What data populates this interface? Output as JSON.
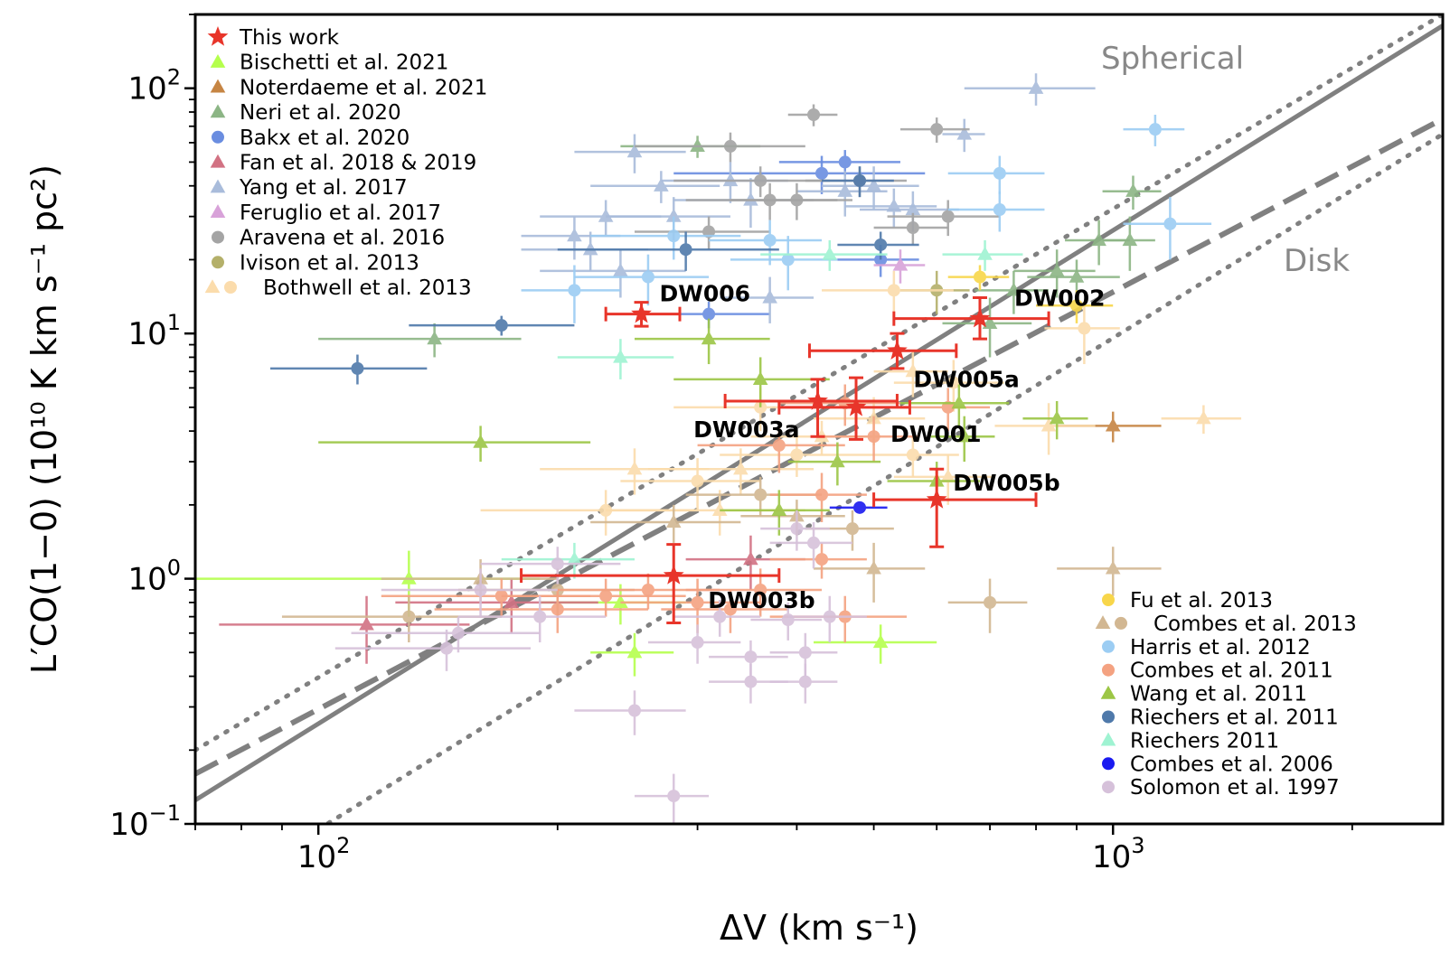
{
  "chart_data": {
    "type": "scatter",
    "xlabel": "ΔV (km s⁻¹)",
    "ylabel": "L′CO(1−0) (10¹⁰ K km s⁻¹ pc²)",
    "xscale": "log",
    "yscale": "log",
    "xlim": [
      70,
      2600
    ],
    "ylim": [
      0.1,
      200
    ],
    "x_tick_labels": [
      {
        "value": 100,
        "base": "10",
        "exp": "2"
      },
      {
        "value": 1000,
        "base": "10",
        "exp": "3"
      }
    ],
    "y_tick_labels": [
      {
        "value": 0.1,
        "base": "10",
        "exp": "−1"
      },
      {
        "value": 1,
        "base": "10",
        "exp": "0"
      },
      {
        "value": 10,
        "base": "10",
        "exp": "1"
      },
      {
        "value": 100,
        "base": "10",
        "exp": "2"
      }
    ],
    "model_labels": {
      "spherical": "Spherical",
      "disk": "Disk"
    },
    "lines": [
      {
        "style": "solid",
        "points": [
          [
            70,
            0.125
          ],
          [
            2600,
            180
          ]
        ]
      },
      {
        "style": "dashed",
        "points": [
          [
            70,
            0.16
          ],
          [
            2600,
            75
          ]
        ]
      },
      {
        "style": "dotted",
        "points": [
          [
            70,
            0.2
          ],
          [
            2600,
            200
          ]
        ]
      },
      {
        "style": "dotted",
        "points": [
          [
            100,
            0.095
          ],
          [
            2600,
            65
          ]
        ]
      }
    ],
    "legend_top": [
      {
        "label": "This work",
        "color": "#e8352a",
        "marker": "star"
      },
      {
        "label": "Bischetti et al. 2021",
        "color": "#b5ff4d",
        "marker": "triangle"
      },
      {
        "label": "Noterdaeme et al. 2021",
        "color": "#c68543",
        "marker": "triangle"
      },
      {
        "label": "Neri et al. 2020",
        "color": "#8cb585",
        "marker": "triangle"
      },
      {
        "label": "Bakx et al. 2020",
        "color": "#6a8de0",
        "marker": "circle"
      },
      {
        "label": "Fan et al. 2018 & 2019",
        "color": "#d27283",
        "marker": "triangle"
      },
      {
        "label": "Yang et al. 2017",
        "color": "#a9bcdb",
        "marker": "triangle"
      },
      {
        "label": "Feruglio et al. 2017",
        "color": "#d8a2d9",
        "marker": "triangle"
      },
      {
        "label": "Aravena et al. 2016",
        "color": "#a4a4a4",
        "marker": "circle"
      },
      {
        "label": "Ivison et al. 2013",
        "color": "#b4b06a",
        "marker": "circle"
      },
      {
        "label": "Bothwell et al. 2013",
        "color": "#fbdcac",
        "marker": "triangle+circle"
      }
    ],
    "legend_bottom": [
      {
        "label": "Fu et al. 2013",
        "color": "#f8d64a",
        "marker": "circle"
      },
      {
        "label": "Combes et al. 2013",
        "color": "#d2b792",
        "marker": "triangle+circle"
      },
      {
        "label": "Harris et al. 2012",
        "color": "#9ccdf3",
        "marker": "circle"
      },
      {
        "label": "Combes et al. 2011",
        "color": "#f4a281",
        "marker": "circle"
      },
      {
        "label": "Wang et al. 2011",
        "color": "#9cc645",
        "marker": "triangle"
      },
      {
        "label": "Riechers et al. 2011",
        "color": "#4f79aa",
        "marker": "circle"
      },
      {
        "label": "Riechers 2011",
        "color": "#9ff3d2",
        "marker": "triangle"
      },
      {
        "label": "Combes et al. 2006",
        "color": "#1a1af0",
        "marker": "circle"
      },
      {
        "label": "Solomon et al. 1997",
        "color": "#d6c1da",
        "marker": "circle"
      }
    ],
    "this_work": [
      {
        "name": "DW006",
        "x": 255,
        "y": 12,
        "xerr": [
          25,
          30
        ],
        "yerr": [
          1.3,
          1.4
        ]
      },
      {
        "name": "DW002",
        "x": 680,
        "y": 11.5,
        "xerr": [
          150,
          150
        ],
        "yerr": [
          2.0,
          2.5
        ]
      },
      {
        "name": "DW005a",
        "x": 535,
        "y": 8.5,
        "xerr": [
          120,
          100
        ],
        "yerr": [
          1.3,
          1.5
        ]
      },
      {
        "name": "DW003a",
        "x": 425,
        "y": 5.3,
        "xerr": [
          100,
          110
        ],
        "yerr": [
          1.5,
          1.2
        ]
      },
      {
        "name": "DW001",
        "x": 475,
        "y": 5.0,
        "xerr": [
          95,
          80
        ],
        "yerr": [
          1.3,
          1.6
        ]
      },
      {
        "name": "DW005b",
        "x": 600,
        "y": 2.1,
        "xerr": [
          100,
          200
        ],
        "yerr": [
          0.75,
          0.7
        ]
      },
      {
        "name": "DW003b",
        "x": 280,
        "y": 1.03,
        "xerr": [
          100,
          100
        ],
        "yerr": [
          0.37,
          0.35
        ]
      }
    ],
    "literature": [
      {
        "color": "#b5ff4d",
        "marker": "triangle",
        "points": [
          [
            130,
            1.0,
            60,
            0.3
          ],
          [
            250,
            0.5,
            30,
            0.1
          ],
          [
            510,
            0.55,
            90,
            0.1
          ],
          [
            240,
            0.8,
            50,
            0.15
          ]
        ]
      },
      {
        "color": "#c68543",
        "marker": "triangle",
        "points": [
          [
            1000,
            4.2,
            150,
            0.6
          ]
        ]
      },
      {
        "color": "#8cb585",
        "marker": "triangle",
        "points": [
          [
            140,
            9.5,
            40,
            1.5
          ],
          [
            300,
            58,
            60,
            6
          ],
          [
            850,
            18,
            100,
            4
          ],
          [
            750,
            15,
            80,
            3
          ],
          [
            1060,
            38,
            90,
            6
          ],
          [
            960,
            24,
            90,
            5
          ],
          [
            1050,
            24,
            80,
            6
          ],
          [
            900,
            17,
            120,
            3
          ],
          [
            700,
            11,
            90,
            3
          ]
        ]
      },
      {
        "color": "#6a8de0",
        "marker": "circle",
        "points": [
          [
            310,
            12,
            60,
            1.5
          ],
          [
            460,
            50,
            80,
            6
          ],
          [
            430,
            45,
            150,
            8
          ],
          [
            510,
            20,
            60,
            3
          ]
        ]
      },
      {
        "color": "#d27283",
        "marker": "triangle",
        "points": [
          [
            115,
            0.65,
            40,
            0.2
          ],
          [
            175,
            0.8,
            50,
            0.2
          ],
          [
            350,
            1.2,
            60,
            0.3
          ]
        ]
      },
      {
        "color": "#a9bcdb",
        "marker": "triangle",
        "points": [
          [
            800,
            100,
            150,
            15
          ],
          [
            650,
            65,
            40,
            10
          ],
          [
            250,
            55,
            40,
            10
          ],
          [
            270,
            40,
            50,
            6
          ],
          [
            220,
            22,
            40,
            4
          ],
          [
            240,
            18,
            50,
            4
          ],
          [
            280,
            30,
            50,
            6
          ],
          [
            350,
            35,
            70,
            8
          ],
          [
            500,
            40,
            70,
            8
          ],
          [
            560,
            32,
            80,
            6
          ],
          [
            210,
            25,
            30,
            5
          ],
          [
            330,
            42,
            60,
            8
          ],
          [
            370,
            14,
            50,
            3
          ],
          [
            460,
            38,
            60,
            8
          ],
          [
            530,
            33,
            70,
            6
          ],
          [
            230,
            30,
            40,
            5
          ]
        ]
      },
      {
        "color": "#d8a2d9",
        "marker": "triangle",
        "points": [
          [
            540,
            19,
            40,
            3
          ]
        ]
      },
      {
        "color": "#a4a4a4",
        "marker": "circle",
        "points": [
          [
            420,
            78,
            30,
            8
          ],
          [
            600,
            68,
            60,
            8
          ],
          [
            360,
            42,
            80,
            6
          ],
          [
            400,
            35,
            70,
            6
          ],
          [
            330,
            58,
            80,
            8
          ],
          [
            310,
            26,
            60,
            4
          ],
          [
            560,
            27,
            60,
            4
          ],
          [
            370,
            35,
            80,
            6
          ],
          [
            480,
            42,
            70,
            6
          ],
          [
            620,
            30,
            100,
            5
          ]
        ]
      },
      {
        "color": "#b4b06a",
        "marker": "circle",
        "points": [
          [
            600,
            15,
            60,
            3
          ]
        ]
      },
      {
        "color": "#fbdcac",
        "marker": "mixed",
        "points": [
          [
            1300,
            4.5,
            150,
            0.6
          ],
          [
            920,
            10.5,
            100,
            3
          ],
          [
            830,
            4.2,
            120,
            1.0
          ],
          [
            530,
            15,
            100,
            3
          ],
          [
            560,
            7,
            60,
            1.5
          ],
          [
            630,
            6.3,
            100,
            1.5
          ],
          [
            250,
            2.8,
            60,
            0.6
          ],
          [
            300,
            2.5,
            60,
            0.6
          ],
          [
            340,
            2.8,
            80,
            0.6
          ],
          [
            400,
            3.2,
            80,
            0.6
          ],
          [
            430,
            3.8,
            80,
            0.6
          ],
          [
            360,
            5,
            80,
            1.0
          ],
          [
            320,
            1.9,
            90,
            0.4
          ],
          [
            230,
            1.9,
            70,
            0.4
          ],
          [
            500,
            4.5,
            80,
            1.0
          ],
          [
            560,
            3.2,
            80,
            0.6
          ],
          [
            620,
            2.6,
            90,
            0.6
          ]
        ]
      },
      {
        "color": "#f8d64a",
        "marker": "circle",
        "points": [
          [
            680,
            17,
            60,
            2
          ],
          [
            900,
            13,
            100,
            2
          ]
        ]
      },
      {
        "color": "#d2b792",
        "marker": "mixed",
        "points": [
          [
            1000,
            1.1,
            150,
            0.25
          ],
          [
            700,
            0.8,
            80,
            0.2
          ],
          [
            500,
            1.1,
            80,
            0.3
          ],
          [
            470,
            1.6,
            60,
            0.3
          ],
          [
            400,
            1.8,
            60,
            0.3
          ],
          [
            360,
            2.2,
            70,
            0.4
          ],
          [
            280,
            1.7,
            60,
            0.3
          ],
          [
            130,
            0.7,
            40,
            0.15
          ],
          [
            160,
            1.0,
            40,
            0.2
          ],
          [
            200,
            0.9,
            50,
            0.2
          ]
        ]
      },
      {
        "color": "#9ccdf3",
        "marker": "circle",
        "points": [
          [
            1130,
            68,
            100,
            10
          ],
          [
            720,
            45,
            100,
            8
          ],
          [
            720,
            32,
            100,
            6
          ],
          [
            1180,
            28,
            150,
            8
          ],
          [
            210,
            15,
            30,
            4
          ],
          [
            280,
            25,
            60,
            5
          ],
          [
            260,
            17,
            50,
            4
          ],
          [
            370,
            24,
            60,
            5
          ],
          [
            390,
            20,
            60,
            5
          ]
        ]
      },
      {
        "color": "#f4a281",
        "marker": "circle",
        "points": [
          [
            620,
            5,
            80,
            1.0
          ],
          [
            460,
            5.2,
            80,
            1.0
          ],
          [
            500,
            3.8,
            70,
            0.8
          ],
          [
            380,
            3.5,
            80,
            0.8
          ],
          [
            430,
            2.2,
            60,
            0.5
          ],
          [
            330,
            0.75,
            60,
            0.15
          ],
          [
            230,
            0.85,
            60,
            0.15
          ],
          [
            260,
            0.9,
            60,
            0.15
          ],
          [
            360,
            0.9,
            70,
            0.2
          ],
          [
            300,
            0.8,
            60,
            0.2
          ],
          [
            460,
            0.7,
            90,
            0.15
          ],
          [
            200,
            0.75,
            60,
            0.15
          ],
          [
            430,
            1.2,
            60,
            0.2
          ],
          [
            170,
            0.85,
            50,
            0.15
          ]
        ]
      },
      {
        "color": "#9cc645",
        "marker": "triangle",
        "points": [
          [
            310,
            9.5,
            60,
            2
          ],
          [
            160,
            3.6,
            60,
            0.6
          ],
          [
            360,
            6.5,
            80,
            1.5
          ],
          [
            640,
            5.2,
            100,
            1.0
          ],
          [
            650,
            3.8,
            60,
            0.8
          ],
          [
            850,
            4.5,
            80,
            0.8
          ],
          [
            380,
            1.9,
            60,
            0.4
          ],
          [
            600,
            2.5,
            80,
            0.5
          ],
          [
            450,
            3.0,
            60,
            0.6
          ]
        ]
      },
      {
        "color": "#4f79aa",
        "marker": "circle",
        "points": [
          [
            112,
            7.2,
            25,
            1.0
          ],
          [
            170,
            10.8,
            40,
            1.0
          ],
          [
            290,
            22,
            90,
            4
          ],
          [
            510,
            23,
            60,
            3
          ],
          [
            480,
            42,
            50,
            6
          ]
        ]
      },
      {
        "color": "#9ff3d2",
        "marker": "triangle",
        "points": [
          [
            240,
            8,
            40,
            1.5
          ],
          [
            690,
            21,
            80,
            3
          ],
          [
            440,
            21,
            80,
            3
          ],
          [
            210,
            1.2,
            40,
            0.2
          ]
        ]
      },
      {
        "color": "#1a1af0",
        "marker": "circle",
        "points": [
          [
            480,
            1.95,
            40,
            0.1
          ]
        ]
      },
      {
        "color": "#d6c1da",
        "marker": "circle",
        "points": [
          [
            280,
            0.13,
            30,
            0.03
          ],
          [
            250,
            0.29,
            40,
            0.06
          ],
          [
            350,
            0.48,
            40,
            0.08
          ],
          [
            350,
            0.38,
            40,
            0.07
          ],
          [
            410,
            0.38,
            40,
            0.07
          ],
          [
            410,
            0.5,
            40,
            0.1
          ],
          [
            440,
            0.7,
            50,
            0.15
          ],
          [
            145,
            0.52,
            40,
            0.1
          ],
          [
            150,
            0.6,
            40,
            0.1
          ],
          [
            190,
            0.7,
            40,
            0.15
          ],
          [
            160,
            0.9,
            40,
            0.2
          ],
          [
            200,
            1.15,
            40,
            0.2
          ],
          [
            300,
            0.55,
            40,
            0.1
          ],
          [
            320,
            0.7,
            40,
            0.12
          ],
          [
            400,
            1.6,
            40,
            0.3
          ],
          [
            420,
            1.4,
            50,
            0.3
          ],
          [
            390,
            0.68,
            40,
            0.12
          ]
        ]
      }
    ]
  }
}
